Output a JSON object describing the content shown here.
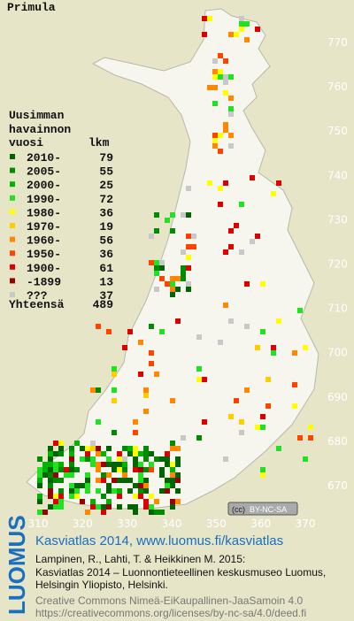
{
  "title": "Primula",
  "legend": {
    "heading": [
      "Uusimman",
      "havainnon",
      "vuosi"
    ],
    "count_heading": "lkm",
    "rows": [
      {
        "label": "2010-",
        "count": 79,
        "color": "#006400"
      },
      {
        "label": "2005-",
        "count": 55,
        "color": "#008c00"
      },
      {
        "label": "2000-",
        "count": 25,
        "color": "#00b400"
      },
      {
        "label": "1990-",
        "count": 72,
        "color": "#22e022"
      },
      {
        "label": "1980-",
        "count": 36,
        "color": "#ffff00"
      },
      {
        "label": "1970-",
        "count": 19,
        "color": "#ffcc00"
      },
      {
        "label": "1960-",
        "count": 56,
        "color": "#ff8800"
      },
      {
        "label": "1950-",
        "count": 36,
        "color": "#ff4400"
      },
      {
        "label": "1900-",
        "count": 61,
        "color": "#dd0000"
      },
      {
        "label": "-1899",
        "count": 13,
        "color": "#990000"
      },
      {
        "label": "???",
        "count": 37,
        "color": "#c8c8c8"
      }
    ],
    "total_label": "Yhteensä",
    "total": 489
  },
  "grid": {
    "y_labels": [
      770,
      760,
      750,
      740,
      730,
      720,
      710,
      700,
      690,
      680,
      670
    ],
    "x_labels": [
      310,
      320,
      330,
      340,
      350,
      360,
      370
    ]
  },
  "license_badge": "BY-NC-SA",
  "footer": {
    "logo": "LUOMUS",
    "link": "Kasviatlas 2014, www.luomus.fi/kasviatlas",
    "citation": [
      "Lampinen, R., Lahti, T. & Heikkinen M. 2015:",
      "Kasviatlas 2014 – Luonnontieteellinen keskusmuseo Luomus,",
      "Helsingin Yliopisto, Helsinki."
    ],
    "license": [
      "Creative Commons Nimeä-EiKaupallinen-JaaSamoin 4.0",
      "https://creativecommons.org/licenses/by-nc-sa/4.0/deed.fi"
    ]
  }
}
